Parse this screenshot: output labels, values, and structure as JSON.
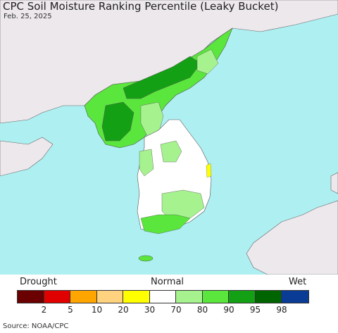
{
  "title": "CPC Soil Moisture Ranking Percentile (Leaky Bucket)",
  "date": "Feb. 25, 2025",
  "legend": {
    "drought_label": "Drought",
    "normal_label": "Normal",
    "wet_label": "Wet",
    "colors": [
      "#6b0000",
      "#e10000",
      "#ffa500",
      "#ffd280",
      "#ffff00",
      "#ffffff",
      "#a6f28f",
      "#5ae63c",
      "#14a014",
      "#006400",
      "#0a3c96"
    ],
    "ticks": [
      "2",
      "5",
      "10",
      "20",
      "30",
      "70",
      "80",
      "90",
      "95",
      "98"
    ]
  },
  "source": "Source: NOAA/CPC",
  "map_colors": {
    "sea": "#aeeff2",
    "foreign_land": "#ece8ec",
    "normal_land": "#ffffff",
    "border": "#555555"
  }
}
